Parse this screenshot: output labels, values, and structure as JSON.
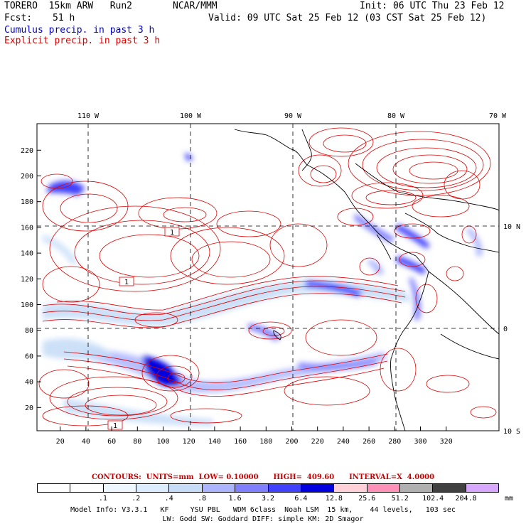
{
  "header": {
    "model": "TORERO  15km ARW   Run2",
    "org": "NCAR/MMM",
    "init": "Init: 06 UTC Thu 23 Feb 12",
    "fcst_label": "Fcst:",
    "fcst_value": "51 h",
    "valid": "Valid: 09 UTC Sat 25 Feb 12 (03 CST Sat 25 Feb 12)",
    "cumulus": "Cumulus precip. in past 3 h",
    "explicit": "Explicit precip. in past 3 h"
  },
  "colors": {
    "cumulus_text": "#0000cc",
    "explicit_text": "#dd0000",
    "contour": "#dd0000",
    "coast": "#000000",
    "grid": "#000000"
  },
  "map": {
    "lon_labels": [
      "110 W",
      "100 W",
      "90 W",
      "80 W",
      "70 W"
    ],
    "lat_labels": [
      "10 N",
      "0",
      "10 S"
    ],
    "x_ticks": [
      "20",
      "40",
      "60",
      "80",
      "100",
      "120",
      "140",
      "160",
      "180",
      "200",
      "220",
      "240",
      "260",
      "280",
      "300",
      "320"
    ],
    "y_ticks": [
      "20",
      "40",
      "60",
      "80",
      "100",
      "120",
      "140",
      "160",
      "180",
      "200",
      "220"
    ],
    "contour_labels": [
      "1",
      "1",
      "1"
    ]
  },
  "contours": {
    "text": "CONTOURS:  UNITS=mm  LOW= 0.10000      HIGH=  409.60      INTERVAL=X  4.0000"
  },
  "legend": {
    "labels": [
      ".1",
      ".2",
      ".4",
      ".8",
      "1.6",
      "3.2",
      "6.4",
      "12.8",
      "25.6",
      "51.2",
      "102.4",
      "204.8"
    ],
    "colors": [
      "#ffffff",
      "#ffffff",
      "#eef6ff",
      "#dcedff",
      "#c7ddf7",
      "#aab4ff",
      "#8080ff",
      "#4040ff",
      "#0000e0",
      "#ffd0d8",
      "#ff90b8",
      "#b0b0b0",
      "#404040",
      "#d8a8ff"
    ],
    "unit": "mm"
  },
  "footer": {
    "line1": "Model Info: V3.3.1   KF     YSU PBL   WDM 6class  Noah LSM  15 km,    44 levels,   103 sec",
    "line2": "LW: Godd SW: Goddard DIFF: simple KM: 2D Smagor"
  }
}
